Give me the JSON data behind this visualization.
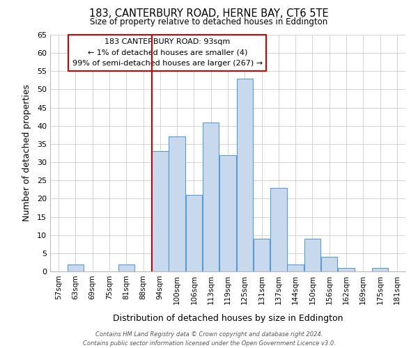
{
  "title": "183, CANTERBURY ROAD, HERNE BAY, CT6 5TE",
  "subtitle": "Size of property relative to detached houses in Eddington",
  "xlabel": "Distribution of detached houses by size in Eddington",
  "ylabel": "Number of detached properties",
  "bar_labels": [
    "57sqm",
    "63sqm",
    "69sqm",
    "75sqm",
    "81sqm",
    "88sqm",
    "94sqm",
    "100sqm",
    "106sqm",
    "113sqm",
    "119sqm",
    "125sqm",
    "131sqm",
    "137sqm",
    "144sqm",
    "150sqm",
    "156sqm",
    "162sqm",
    "169sqm",
    "175sqm",
    "181sqm"
  ],
  "bar_values": [
    0,
    2,
    0,
    0,
    2,
    0,
    33,
    37,
    21,
    41,
    32,
    53,
    9,
    23,
    2,
    9,
    4,
    1,
    0,
    1,
    0
  ],
  "bar_color": "#c8d9ed",
  "bar_edge_color": "#5b9bd5",
  "vline_x_index": 6,
  "vline_color": "#cc0000",
  "ylim": [
    0,
    65
  ],
  "yticks": [
    0,
    5,
    10,
    15,
    20,
    25,
    30,
    35,
    40,
    45,
    50,
    55,
    60,
    65
  ],
  "annotation_title": "183 CANTERBURY ROAD: 93sqm",
  "annotation_line1": "← 1% of detached houses are smaller (4)",
  "annotation_line2": "99% of semi-detached houses are larger (267) →",
  "annotation_box_color": "#ffffff",
  "annotation_box_edge": "#cc0000",
  "footer_line1": "Contains HM Land Registry data © Crown copyright and database right 2024.",
  "footer_line2": "Contains public sector information licensed under the Open Government Licence v3.0.",
  "background_color": "#ffffff",
  "grid_color": "#cccccc"
}
